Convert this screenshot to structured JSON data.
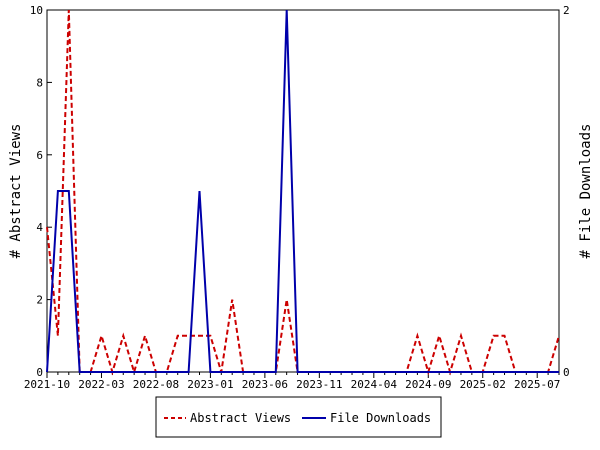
{
  "chart_data": {
    "type": "line",
    "x_tick_labels": [
      "2021-10",
      "2022-03",
      "2022-08",
      "2023-01",
      "2023-06",
      "2023-11",
      "2024-04",
      "2024-09",
      "2025-02",
      "2025-07"
    ],
    "left_axis": {
      "label": "# Abstract Views",
      "ylim": [
        0,
        10
      ],
      "ticks": [
        0,
        2,
        4,
        6,
        8,
        10
      ]
    },
    "right_axis": {
      "label": "# File Downloads",
      "ylim": [
        0,
        2
      ],
      "ticks": [
        0,
        2
      ]
    },
    "x_range_months": [
      0,
      47
    ],
    "grid": false,
    "legend_position": "bottom-center",
    "series": [
      {
        "name": "Abstract Views",
        "axis": "left",
        "color": "#cc0000",
        "dash": true,
        "x": [
          0,
          1,
          2,
          3,
          4,
          5,
          6,
          7,
          8,
          9,
          10,
          11,
          12,
          13,
          14,
          15,
          16,
          17,
          18,
          19,
          20,
          21,
          22,
          23,
          24,
          25,
          26,
          27,
          28,
          29,
          30,
          31,
          32,
          33,
          34,
          35,
          36,
          37,
          38,
          39,
          40,
          41,
          42,
          43,
          44,
          45,
          46,
          47
        ],
        "values": [
          4,
          1,
          10,
          0,
          0,
          1,
          0,
          1,
          0,
          1,
          0,
          0,
          1,
          1,
          1,
          1,
          0,
          2,
          0,
          0,
          0,
          0,
          2,
          0,
          0,
          0,
          0,
          0,
          0,
          0,
          0,
          0,
          0,
          0,
          1,
          0,
          1,
          0,
          1,
          0,
          0,
          1,
          1,
          0,
          0,
          0,
          0,
          1
        ]
      },
      {
        "name": "File Downloads",
        "axis": "right",
        "color": "#0000aa",
        "dash": false,
        "x": [
          0,
          1,
          2,
          3,
          4,
          5,
          6,
          7,
          8,
          9,
          10,
          11,
          12,
          13,
          14,
          15,
          16,
          17,
          18,
          19,
          20,
          21,
          22,
          23,
          24,
          25,
          26,
          27,
          28,
          29,
          30,
          31,
          32,
          33,
          34,
          35,
          36,
          37,
          38,
          39,
          40,
          41,
          42,
          43,
          44,
          45,
          46,
          47
        ],
        "values": [
          0,
          1,
          1,
          0,
          0,
          0,
          0,
          0,
          0,
          0,
          0,
          0,
          0,
          0,
          1,
          0,
          0,
          0,
          0,
          0,
          0,
          0,
          2,
          0,
          0,
          0,
          0,
          0,
          0,
          0,
          0,
          0,
          0,
          0,
          0,
          0,
          0,
          0,
          0,
          0,
          0,
          0,
          0,
          0,
          0,
          0,
          0,
          0
        ]
      }
    ]
  }
}
